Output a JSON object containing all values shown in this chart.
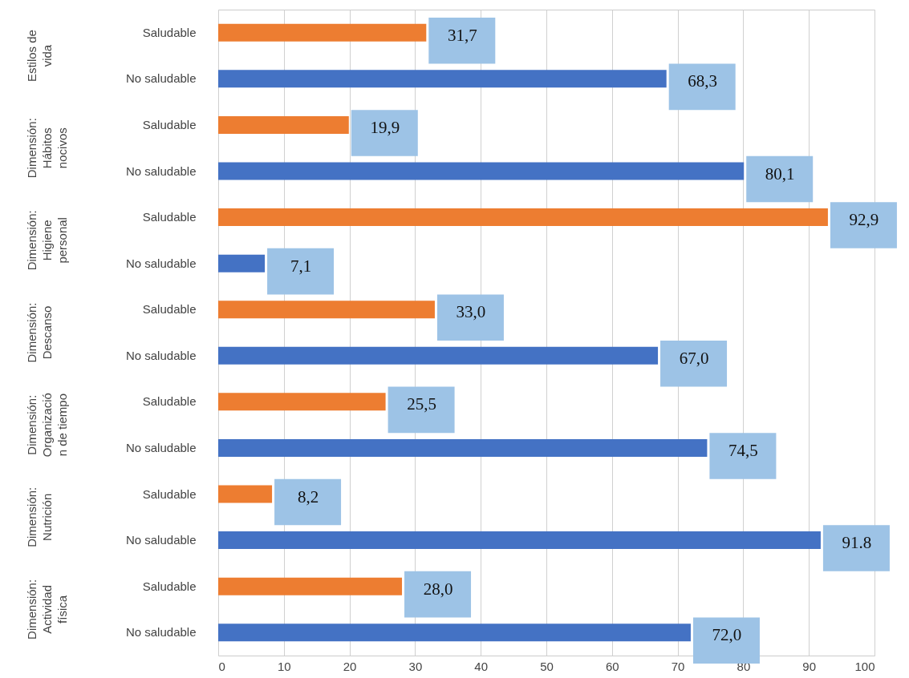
{
  "chart_data": {
    "type": "bar",
    "orientation": "horizontal",
    "categories": [
      "Saludable",
      "No saludable",
      "Saludable",
      "No saludable",
      "Saludable",
      "No saludable",
      "Saludable",
      "No saludable",
      "Saludable",
      "No saludable",
      "Saludable",
      "No saludable",
      "Saludable",
      "No saludable"
    ],
    "values": [
      31.7,
      68.3,
      19.9,
      80.1,
      92.9,
      7.1,
      33.0,
      67.0,
      25.5,
      74.5,
      8.2,
      91.8,
      28.0,
      72.0
    ],
    "colors": [
      "#ed7d31",
      "#4472c4",
      "#ed7d31",
      "#4472c4",
      "#ed7d31",
      "#4472c4",
      "#ed7d31",
      "#4472c4",
      "#ed7d31",
      "#4472c4",
      "#ed7d31",
      "#4472c4",
      "#ed7d31",
      "#4472c4"
    ],
    "value_labels": [
      "31,7",
      "68,3",
      "19,9",
      "80,1",
      "92,9",
      "7,1",
      "33,0",
      "67,0",
      "25,5",
      "74,5",
      "8,2",
      "91.8",
      "28,0",
      "72,0"
    ],
    "annotations": [
      "Estilos de\nvida",
      "Dimensión:\nHábitos\nnocivos",
      "Dimensión:\nHigiene\npersonal",
      "Dimensión:\nDescanso",
      "Dimensión:\nOrganizació\nn de tiempo",
      "Dimensión:\nNutrición",
      "Dimensión:\nActividad\nfísica"
    ],
    "xlim": [
      0,
      100
    ],
    "xticks": [
      0,
      10,
      20,
      30,
      40,
      50,
      60,
      70,
      80,
      90,
      100
    ],
    "grid": "x"
  }
}
